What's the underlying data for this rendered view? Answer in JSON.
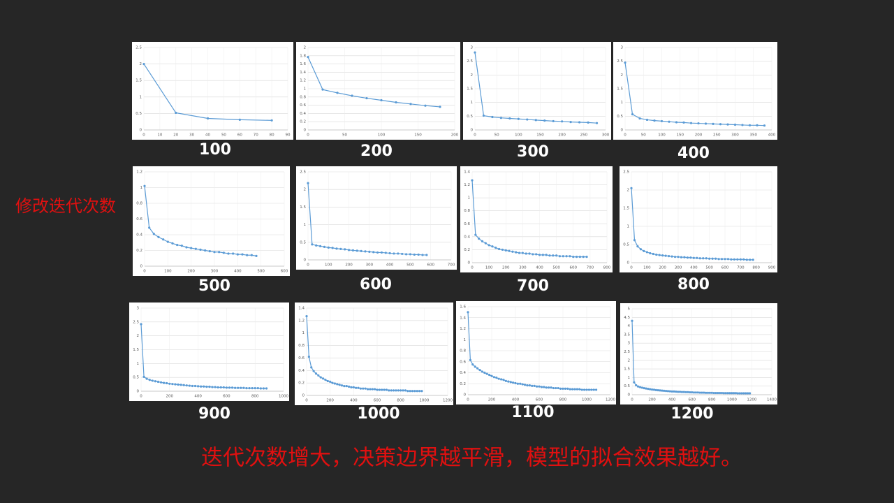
{
  "slide": {
    "side_label": "修改迭代次数",
    "caption": "迭代次数增大，决策边界越平滑，模型的拟合效果越好。"
  },
  "chart_data": [
    {
      "type": "line",
      "title": "100",
      "color": "#5b9bd5",
      "grid": true,
      "x": [
        0,
        20,
        40,
        60,
        80
      ],
      "values": [
        2.0,
        0.52,
        0.35,
        0.31,
        0.29
      ],
      "xlim": [
        0,
        90
      ],
      "xticks": [
        0,
        10,
        20,
        30,
        40,
        50,
        60,
        70,
        80,
        90
      ],
      "ylim": [
        0,
        2.5
      ],
      "yticks": [
        0,
        0.5,
        1,
        1.5,
        2,
        2.5
      ]
    },
    {
      "type": "line",
      "title": "200",
      "color": "#5b9bd5",
      "grid": true,
      "x": [
        0,
        20,
        40,
        60,
        80,
        100,
        120,
        140,
        160,
        180
      ],
      "values": [
        1.77,
        0.98,
        0.9,
        0.83,
        0.77,
        0.72,
        0.67,
        0.63,
        0.59,
        0.56
      ],
      "xlim": [
        0,
        200
      ],
      "xticks": [
        0,
        50,
        100,
        150,
        200
      ],
      "ylim": [
        0,
        2
      ],
      "yticks": [
        0,
        0.2,
        0.4,
        0.6,
        0.8,
        1,
        1.2,
        1.4,
        1.6,
        1.8,
        2
      ]
    },
    {
      "type": "line",
      "title": "300",
      "color": "#5b9bd5",
      "grid": true,
      "x": [
        0,
        20,
        40,
        60,
        80,
        100,
        120,
        140,
        160,
        180,
        200,
        220,
        240,
        260,
        280
      ],
      "values": [
        2.82,
        0.52,
        0.47,
        0.44,
        0.42,
        0.4,
        0.38,
        0.36,
        0.34,
        0.32,
        0.31,
        0.29,
        0.28,
        0.27,
        0.25
      ],
      "xlim": [
        0,
        300
      ],
      "xticks": [
        0,
        50,
        100,
        150,
        200,
        250,
        300
      ],
      "ylim": [
        0,
        3
      ],
      "yticks": [
        0,
        0.5,
        1,
        1.5,
        2,
        2.5,
        3
      ]
    },
    {
      "type": "line",
      "title": "400",
      "color": "#5b9bd5",
      "grid": true,
      "x": [
        0,
        20,
        40,
        60,
        80,
        100,
        120,
        140,
        160,
        180,
        200,
        220,
        240,
        260,
        280,
        300,
        320,
        340,
        360,
        380
      ],
      "values": [
        2.45,
        0.57,
        0.42,
        0.37,
        0.34,
        0.32,
        0.3,
        0.28,
        0.27,
        0.25,
        0.24,
        0.23,
        0.22,
        0.21,
        0.2,
        0.19,
        0.18,
        0.17,
        0.17,
        0.16
      ],
      "xlim": [
        0,
        400
      ],
      "xticks": [
        0,
        50,
        100,
        150,
        200,
        250,
        300,
        350,
        400
      ],
      "ylim": [
        0,
        3
      ],
      "yticks": [
        0,
        0.5,
        1,
        1.5,
        2,
        2.5,
        3
      ]
    },
    {
      "type": "line",
      "title": "500",
      "color": "#5b9bd5",
      "grid": true,
      "x": [
        0,
        20,
        40,
        60,
        80,
        100,
        120,
        140,
        160,
        180,
        200,
        220,
        240,
        260,
        280,
        300,
        320,
        340,
        360,
        380,
        400,
        420,
        440,
        460,
        480
      ],
      "values": [
        1.02,
        0.49,
        0.41,
        0.37,
        0.34,
        0.31,
        0.29,
        0.27,
        0.26,
        0.24,
        0.23,
        0.22,
        0.21,
        0.2,
        0.19,
        0.18,
        0.18,
        0.17,
        0.16,
        0.16,
        0.15,
        0.15,
        0.14,
        0.14,
        0.13
      ],
      "xlim": [
        0,
        600
      ],
      "xticks": [
        0,
        100,
        200,
        300,
        400,
        500,
        600
      ],
      "ylim": [
        0,
        1.2
      ],
      "yticks": [
        0,
        0.2,
        0.4,
        0.6,
        0.8,
        1,
        1.2
      ]
    },
    {
      "type": "line",
      "title": "600",
      "color": "#5b9bd5",
      "grid": true,
      "x": [
        0,
        20,
        40,
        60,
        80,
        100,
        120,
        140,
        160,
        180,
        200,
        220,
        240,
        260,
        280,
        300,
        320,
        340,
        360,
        380,
        400,
        420,
        440,
        460,
        480,
        500,
        520,
        540,
        560,
        580
      ],
      "values": [
        2.18,
        0.44,
        0.41,
        0.39,
        0.37,
        0.35,
        0.34,
        0.32,
        0.31,
        0.3,
        0.28,
        0.27,
        0.26,
        0.25,
        0.24,
        0.23,
        0.22,
        0.21,
        0.21,
        0.2,
        0.19,
        0.18,
        0.18,
        0.17,
        0.16,
        0.16,
        0.15,
        0.15,
        0.14,
        0.14
      ],
      "xlim": [
        0,
        700
      ],
      "xticks": [
        0,
        100,
        200,
        300,
        400,
        500,
        600,
        700
      ],
      "ylim": [
        0,
        2.5
      ],
      "yticks": [
        0,
        0.5,
        1,
        1.5,
        2,
        2.5
      ]
    },
    {
      "type": "line",
      "title": "700",
      "color": "#5b9bd5",
      "grid": true,
      "x": [
        0,
        20,
        40,
        60,
        80,
        100,
        120,
        140,
        160,
        180,
        200,
        220,
        240,
        260,
        280,
        300,
        320,
        340,
        360,
        380,
        400,
        420,
        440,
        460,
        480,
        500,
        520,
        540,
        560,
        580,
        600,
        620,
        640,
        660,
        680
      ],
      "values": [
        1.27,
        0.43,
        0.37,
        0.33,
        0.3,
        0.27,
        0.25,
        0.23,
        0.21,
        0.2,
        0.19,
        0.18,
        0.17,
        0.16,
        0.15,
        0.15,
        0.14,
        0.14,
        0.13,
        0.13,
        0.12,
        0.12,
        0.12,
        0.11,
        0.11,
        0.11,
        0.1,
        0.1,
        0.1,
        0.1,
        0.09,
        0.09,
        0.09,
        0.09,
        0.09
      ],
      "xlim": [
        0,
        800
      ],
      "xticks": [
        0,
        100,
        200,
        300,
        400,
        500,
        600,
        700,
        800
      ],
      "ylim": [
        0,
        1.4
      ],
      "yticks": [
        0,
        0.2,
        0.4,
        0.6,
        0.8,
        1,
        1.2,
        1.4
      ]
    },
    {
      "type": "line",
      "title": "800",
      "color": "#5b9bd5",
      "grid": true,
      "x": [
        0,
        20,
        40,
        60,
        80,
        100,
        120,
        140,
        160,
        180,
        200,
        220,
        240,
        260,
        280,
        300,
        320,
        340,
        360,
        380,
        400,
        420,
        440,
        460,
        480,
        500,
        520,
        540,
        560,
        580,
        600,
        620,
        640,
        660,
        680,
        700,
        720,
        740,
        760,
        780
      ],
      "values": [
        2.05,
        0.62,
        0.45,
        0.37,
        0.32,
        0.29,
        0.26,
        0.24,
        0.22,
        0.21,
        0.2,
        0.19,
        0.18,
        0.17,
        0.16,
        0.16,
        0.15,
        0.15,
        0.14,
        0.14,
        0.13,
        0.13,
        0.12,
        0.12,
        0.12,
        0.11,
        0.11,
        0.11,
        0.1,
        0.1,
        0.1,
        0.1,
        0.09,
        0.09,
        0.09,
        0.09,
        0.09,
        0.08,
        0.08,
        0.08
      ],
      "xlim": [
        0,
        900
      ],
      "xticks": [
        0,
        100,
        200,
        300,
        400,
        500,
        600,
        700,
        800,
        900
      ],
      "ylim": [
        0,
        2.5
      ],
      "yticks": [
        0,
        0.5,
        1,
        1.5,
        2,
        2.5
      ]
    },
    {
      "type": "line",
      "title": "900",
      "color": "#5b9bd5",
      "grid": true,
      "x": [
        0,
        20,
        40,
        60,
        80,
        100,
        120,
        140,
        160,
        180,
        200,
        220,
        240,
        260,
        280,
        300,
        320,
        340,
        360,
        380,
        400,
        420,
        440,
        460,
        480,
        500,
        520,
        540,
        560,
        580,
        600,
        620,
        640,
        660,
        680,
        700,
        720,
        740,
        760,
        780,
        800,
        820,
        840,
        860,
        880
      ],
      "values": [
        2.42,
        0.52,
        0.45,
        0.41,
        0.38,
        0.36,
        0.34,
        0.32,
        0.3,
        0.29,
        0.27,
        0.26,
        0.25,
        0.24,
        0.23,
        0.22,
        0.21,
        0.2,
        0.19,
        0.19,
        0.18,
        0.17,
        0.17,
        0.16,
        0.16,
        0.15,
        0.15,
        0.14,
        0.14,
        0.14,
        0.13,
        0.13,
        0.13,
        0.12,
        0.12,
        0.12,
        0.12,
        0.11,
        0.11,
        0.11,
        0.11,
        0.11,
        0.1,
        0.1,
        0.1
      ],
      "xlim": [
        0,
        1000
      ],
      "xticks": [
        0,
        200,
        400,
        600,
        800,
        1000
      ],
      "ylim": [
        0,
        3
      ],
      "yticks": [
        0,
        0.5,
        1,
        1.5,
        2,
        2.5,
        3
      ]
    },
    {
      "type": "line",
      "title": "1000",
      "color": "#5b9bd5",
      "grid": true,
      "x": [
        0,
        20,
        40,
        60,
        80,
        100,
        120,
        140,
        160,
        180,
        200,
        220,
        240,
        260,
        280,
        300,
        320,
        340,
        360,
        380,
        400,
        420,
        440,
        460,
        480,
        500,
        520,
        540,
        560,
        580,
        600,
        620,
        640,
        660,
        680,
        700,
        720,
        740,
        760,
        780,
        800,
        820,
        840,
        860,
        880,
        900,
        920,
        940,
        960,
        980
      ],
      "values": [
        1.27,
        0.62,
        0.45,
        0.39,
        0.35,
        0.32,
        0.29,
        0.27,
        0.25,
        0.23,
        0.22,
        0.2,
        0.19,
        0.18,
        0.17,
        0.16,
        0.15,
        0.15,
        0.14,
        0.13,
        0.13,
        0.12,
        0.12,
        0.11,
        0.11,
        0.11,
        0.1,
        0.1,
        0.1,
        0.1,
        0.09,
        0.09,
        0.09,
        0.09,
        0.09,
        0.08,
        0.08,
        0.08,
        0.08,
        0.08,
        0.08,
        0.08,
        0.08,
        0.07,
        0.07,
        0.07,
        0.07,
        0.07,
        0.07,
        0.07
      ],
      "xlim": [
        0,
        1200
      ],
      "xticks": [
        0,
        200,
        400,
        600,
        800,
        1000,
        1200
      ],
      "ylim": [
        0,
        1.4
      ],
      "yticks": [
        0,
        0.2,
        0.4,
        0.6,
        0.8,
        1,
        1.2,
        1.4
      ]
    },
    {
      "type": "line",
      "title": "1100",
      "color": "#5b9bd5",
      "grid": true,
      "x": [
        0,
        20,
        40,
        60,
        80,
        100,
        120,
        140,
        160,
        180,
        200,
        220,
        240,
        260,
        280,
        300,
        320,
        340,
        360,
        380,
        400,
        420,
        440,
        460,
        480,
        500,
        520,
        540,
        560,
        580,
        600,
        620,
        640,
        660,
        680,
        700,
        720,
        740,
        760,
        780,
        800,
        820,
        840,
        860,
        880,
        900,
        920,
        940,
        960,
        980,
        1000,
        1020,
        1040,
        1060,
        1080
      ],
      "values": [
        1.5,
        0.63,
        0.55,
        0.51,
        0.48,
        0.45,
        0.42,
        0.4,
        0.38,
        0.36,
        0.34,
        0.32,
        0.31,
        0.29,
        0.28,
        0.27,
        0.25,
        0.24,
        0.23,
        0.22,
        0.21,
        0.2,
        0.2,
        0.19,
        0.18,
        0.17,
        0.17,
        0.16,
        0.16,
        0.15,
        0.15,
        0.14,
        0.14,
        0.13,
        0.13,
        0.13,
        0.12,
        0.12,
        0.12,
        0.11,
        0.11,
        0.11,
        0.11,
        0.1,
        0.1,
        0.1,
        0.1,
        0.1,
        0.09,
        0.09,
        0.09,
        0.09,
        0.09,
        0.09,
        0.09
      ],
      "xlim": [
        0,
        1200
      ],
      "xticks": [
        0,
        200,
        400,
        600,
        800,
        1000,
        1200
      ],
      "ylim": [
        0,
        1.6
      ],
      "yticks": [
        0,
        0.2,
        0.4,
        0.6,
        0.8,
        1,
        1.2,
        1.4,
        1.6
      ]
    },
    {
      "type": "line",
      "title": "1200",
      "color": "#5b9bd5",
      "grid": true,
      "x": [
        0,
        20,
        40,
        60,
        80,
        100,
        120,
        140,
        160,
        180,
        200,
        220,
        240,
        260,
        280,
        300,
        320,
        340,
        360,
        380,
        400,
        420,
        440,
        460,
        480,
        500,
        520,
        540,
        560,
        580,
        600,
        620,
        640,
        660,
        680,
        700,
        720,
        740,
        760,
        780,
        800,
        820,
        840,
        860,
        880,
        900,
        920,
        940,
        960,
        980,
        1000,
        1020,
        1040,
        1060,
        1080,
        1100,
        1120,
        1140,
        1160,
        1180
      ],
      "values": [
        4.3,
        0.72,
        0.55,
        0.48,
        0.44,
        0.41,
        0.38,
        0.36,
        0.34,
        0.32,
        0.3,
        0.29,
        0.27,
        0.26,
        0.25,
        0.24,
        0.23,
        0.22,
        0.21,
        0.2,
        0.19,
        0.19,
        0.18,
        0.17,
        0.17,
        0.16,
        0.16,
        0.15,
        0.15,
        0.14,
        0.14,
        0.13,
        0.13,
        0.13,
        0.12,
        0.12,
        0.12,
        0.11,
        0.11,
        0.11,
        0.11,
        0.1,
        0.1,
        0.1,
        0.1,
        0.1,
        0.09,
        0.09,
        0.09,
        0.09,
        0.09,
        0.09,
        0.09,
        0.08,
        0.08,
        0.08,
        0.08,
        0.08,
        0.08,
        0.08
      ],
      "xlim": [
        0,
        1400
      ],
      "xticks": [
        0,
        200,
        400,
        600,
        800,
        1000,
        1200,
        1400
      ],
      "ylim": [
        0,
        5
      ],
      "yticks": [
        0,
        0.5,
        1,
        1.5,
        2,
        2.5,
        3,
        3.5,
        4,
        4.5,
        5
      ]
    }
  ]
}
